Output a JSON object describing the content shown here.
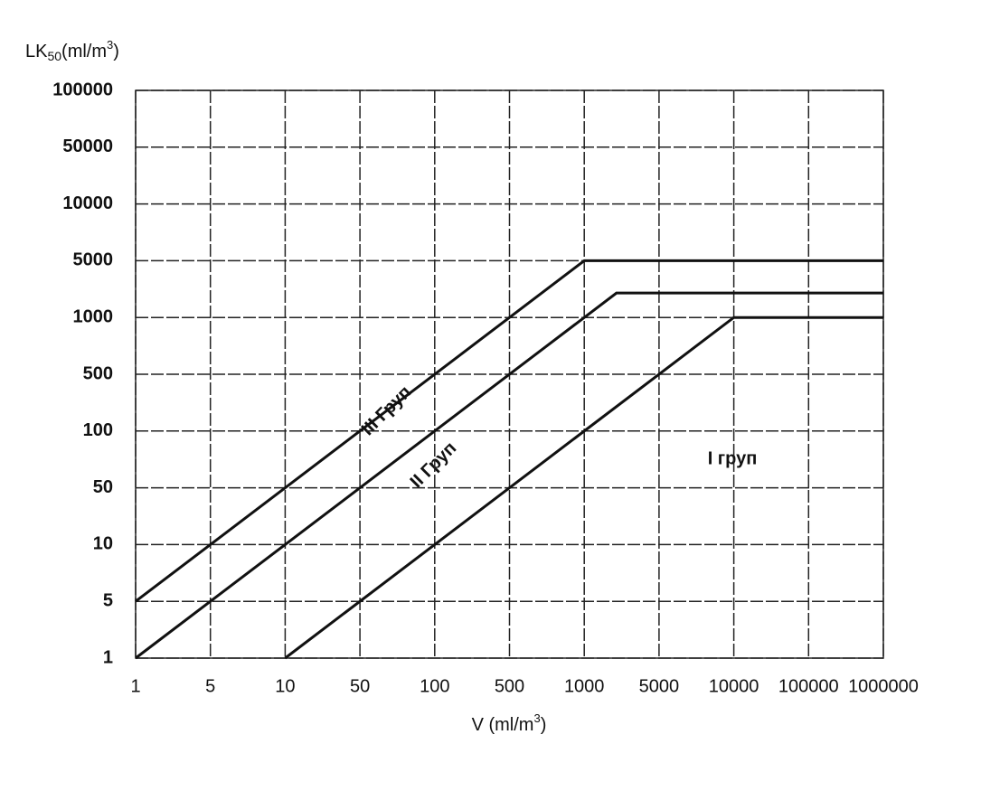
{
  "chart_data": {
    "type": "line",
    "y_label": [
      "LK",
      "50",
      "(ml/m",
      "3",
      ")"
    ],
    "x_label": [
      "V (ml/m",
      "3",
      ")"
    ],
    "xscale": "log",
    "yscale": "log",
    "xlim": [
      1,
      1000000
    ],
    "ylim": [
      1,
      100000
    ],
    "xticks": [
      1,
      5,
      10,
      50,
      100,
      500,
      1000,
      5000,
      10000,
      100000,
      1000000
    ],
    "yticks": [
      1,
      5,
      10,
      50,
      100,
      500,
      1000,
      5000,
      10000,
      50000,
      100000
    ],
    "grid": true,
    "color": "#111111",
    "series": [
      {
        "x": [
          1,
          1000,
          1000000
        ],
        "values": [
          5,
          5000,
          5000
        ]
      },
      {
        "x": [
          1,
          2000,
          1000000
        ],
        "values": [
          1,
          2000,
          2000
        ]
      },
      {
        "x": [
          10,
          10000,
          1000000
        ],
        "values": [
          1,
          1000,
          1000
        ]
      }
    ],
    "annotations": [
      "III Груп",
      "II Груп",
      "I груп"
    ]
  }
}
